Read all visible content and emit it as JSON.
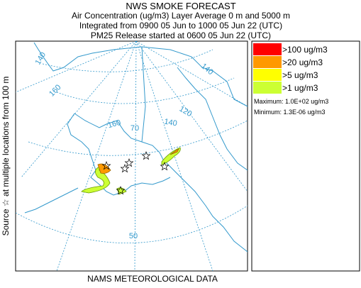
{
  "header": {
    "title": "NWS SMOKE FORECAST",
    "lines": [
      "Air Concentration (ug/m3) Layer Average    0 m and  5000 m",
      "Integrated from 0900 05 Jun to 1000 05 Jun 22 (UTC)",
      "PM25 Release started at 0600 05 Jun 22 (UTC)"
    ]
  },
  "legend": {
    "items": [
      {
        "label": ">100 ug/m3",
        "color": "#ff0000"
      },
      {
        "label": ">20 ug/m3",
        "color": "#ff9900"
      },
      {
        "label": ">5 ug/m3",
        "color": "#ffff00"
      },
      {
        "label": ">1 ug/m3",
        "color": "#ccff33"
      }
    ],
    "maximum": "Maximum: 1.0E+02 ug/m3",
    "minimum": "Minimum: 1.3E-06 ug/m3"
  },
  "side_label": "Source ☆  at multiple locations  from   100 m",
  "footer": "NAMS METEOROLOGICAL DATA",
  "map": {
    "graticule_labels": [
      "140",
      "160",
      "160",
      "70",
      "140",
      "120",
      "140",
      "50"
    ]
  }
}
